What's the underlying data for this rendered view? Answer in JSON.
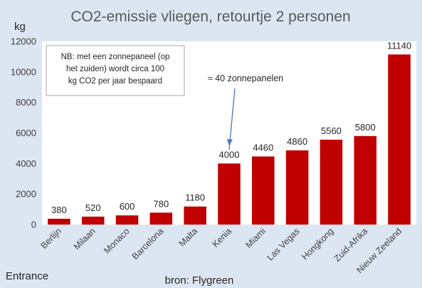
{
  "chart_data": {
    "type": "bar",
    "title": "CO2-emissie vliegen, retourtje 2 personen",
    "ylabel": "kg",
    "xlabel": "",
    "ylim": [
      0,
      12000
    ],
    "yticks": [
      "0",
      "2000",
      "4000",
      "6000",
      "8000",
      "10000",
      "12000"
    ],
    "grid": false,
    "categories": [
      "Berlijn",
      "Milaan",
      "Monaco",
      "Barcelona",
      "Malta",
      "Kenia",
      "Miami",
      "Las Vegas",
      "Hongkong",
      "Zuid-Afrika",
      "Nieuw Zeeland"
    ],
    "values": [
      380,
      520,
      600,
      780,
      1180,
      4000,
      4460,
      4860,
      5560,
      5800,
      11140
    ],
    "data_labels": [
      "380",
      "520",
      "600",
      "780",
      "1180",
      "4000",
      "4460",
      "4860",
      "5560",
      "5800",
      "11140"
    ],
    "bar_color": "#c00000",
    "plot_background": "#ffffff",
    "note": {
      "lines": [
        "NB: met een zonnepaneel (op",
        "het zuiden) wordt circa 100",
        "kg CO2 per jaar bespaard"
      ]
    },
    "annotation": {
      "text": "≈ 40 zonnepanelen",
      "target_category": "Kenia",
      "arrow_color": "#4a78b8"
    },
    "source": "bron: Flygreen",
    "footer_left": "Entrance"
  }
}
